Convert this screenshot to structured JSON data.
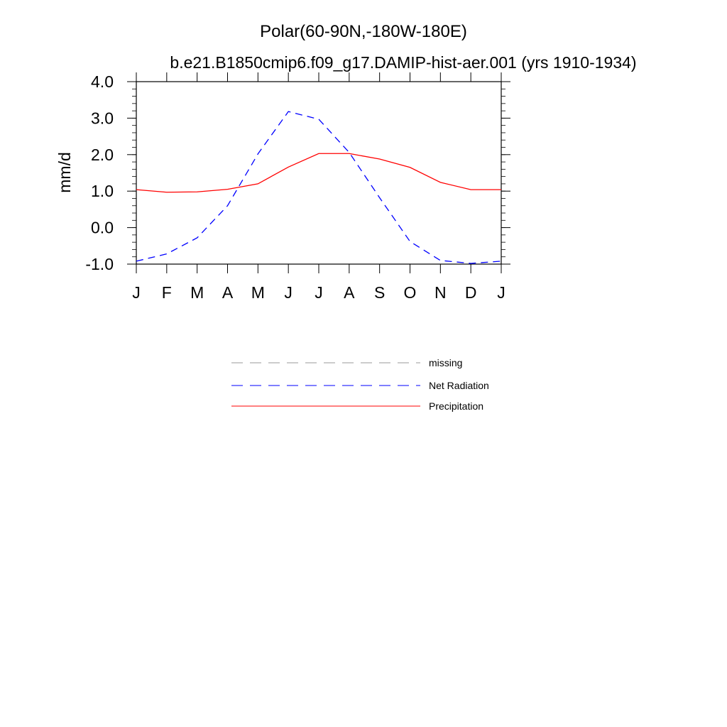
{
  "chart_data": {
    "type": "line",
    "title": "Polar(60-90N,-180W-180E)",
    "subtitle": "b.e21.B1850cmip6.f09_g17.DAMIP-hist-aer.001 (yrs 1910-1934)",
    "xlabel": "",
    "ylabel": "mm/d",
    "categories": [
      "J",
      "F",
      "M",
      "A",
      "M",
      "J",
      "J",
      "A",
      "S",
      "O",
      "N",
      "D",
      "J"
    ],
    "ylim": [
      -1.0,
      4.0
    ],
    "yticks": [
      "-1.0",
      "0.0",
      "1.0",
      "2.0",
      "3.0",
      "4.0"
    ],
    "ytick_values": [
      -1.0,
      0.0,
      1.0,
      2.0,
      3.0,
      4.0
    ],
    "grid": false,
    "legend_position": "bottom-center",
    "series": [
      {
        "name": "Net Radiation",
        "color": "#0000ff",
        "style": "dashed",
        "values": [
          -0.92,
          -0.72,
          -0.28,
          0.6,
          2.02,
          3.18,
          2.97,
          2.06,
          0.82,
          -0.38,
          -0.9,
          -0.98,
          -0.92
        ]
      },
      {
        "name": "Precipitation",
        "color": "#ff0000",
        "style": "solid",
        "values": [
          1.04,
          0.97,
          0.98,
          1.05,
          1.2,
          1.66,
          2.03,
          2.03,
          1.88,
          1.65,
          1.24,
          1.04,
          1.04
        ]
      }
    ],
    "legend": [
      {
        "label": "missing",
        "color": "#999999",
        "style": "dashed"
      },
      {
        "label": "Net Radiation",
        "color": "#0000ff",
        "style": "dashed"
      },
      {
        "label": "Precipitation",
        "color": "#ff0000",
        "style": "solid"
      }
    ]
  }
}
